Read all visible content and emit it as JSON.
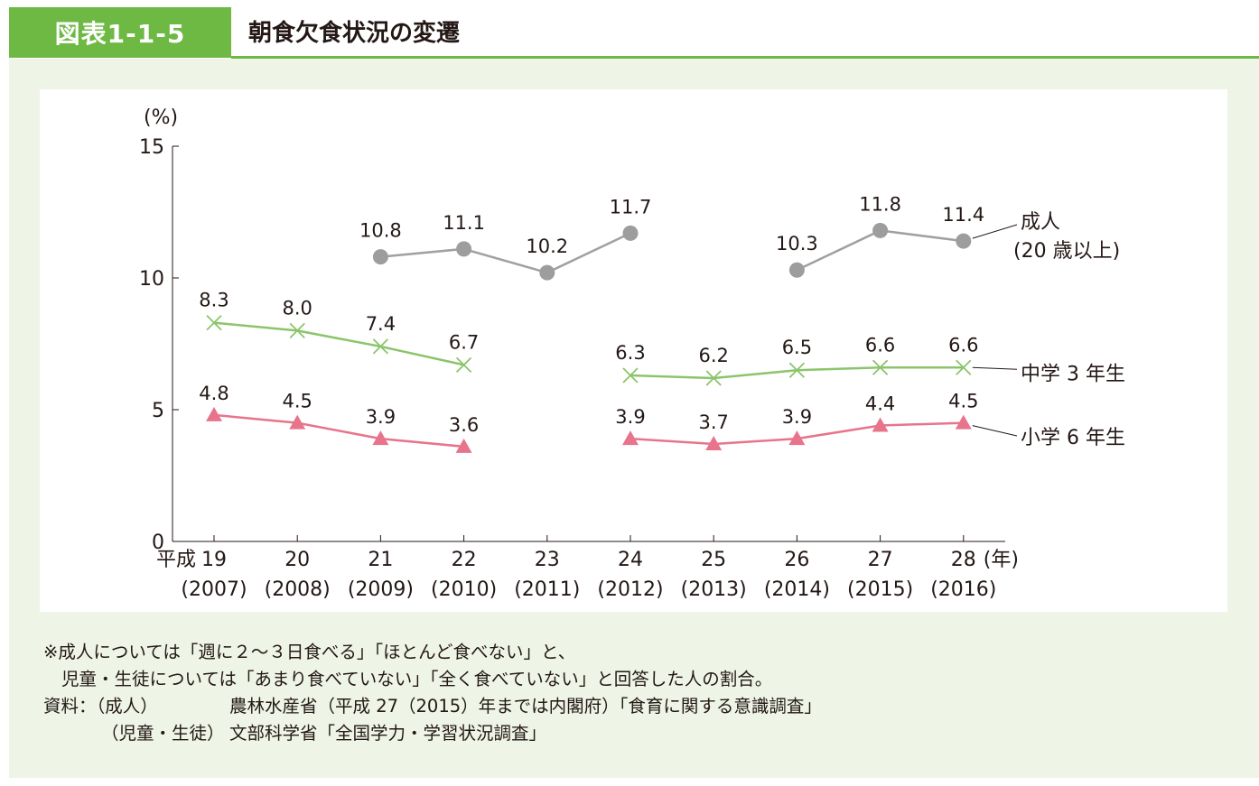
{
  "figure": {
    "number": "図表1-1-5",
    "title": "朝食欠食状況の変遷",
    "colors": {
      "accent": "#6db944",
      "panel": "#eef4e6"
    }
  },
  "chart_data": {
    "type": "line",
    "title": "朝食欠食状況の変遷",
    "ylabel": "(%)",
    "xlabel": "(年)",
    "ylim": [
      0,
      15
    ],
    "yticks": [
      0,
      5,
      10,
      15
    ],
    "x_era_prefix": "平成",
    "categories": [
      "19",
      "20",
      "21",
      "22",
      "23",
      "24",
      "25",
      "26",
      "27",
      "28"
    ],
    "categories_western": [
      "(2007)",
      "(2008)",
      "(2009)",
      "(2010)",
      "(2011)",
      "(2012)",
      "(2013)",
      "(2014)",
      "(2015)",
      "(2016)"
    ],
    "series": [
      {
        "name": "成人",
        "name_sub": "(20 歳以上)",
        "marker": "circle",
        "color": "#a0a0a0",
        "marker_color": "#9d9d9d",
        "values": [
          null,
          null,
          10.8,
          11.1,
          10.2,
          11.7,
          null,
          10.3,
          11.8,
          11.4
        ],
        "labels": [
          "",
          "",
          "10.8",
          "11.1",
          "10.2",
          "11.7",
          "",
          "10.3",
          "11.8",
          "11.4"
        ],
        "segments": [
          [
            2,
            5
          ],
          [
            7,
            9
          ]
        ]
      },
      {
        "name": "中学 3 年生",
        "marker": "cross",
        "color": "#8cc46c",
        "marker_color": "#8cc46c",
        "values": [
          8.3,
          8.0,
          7.4,
          6.7,
          null,
          6.3,
          6.2,
          6.5,
          6.6,
          6.6
        ],
        "labels": [
          "8.3",
          "8.0",
          "7.4",
          "6.7",
          "",
          "6.3",
          "6.2",
          "6.5",
          "6.6",
          "6.6"
        ],
        "segments": [
          [
            0,
            3
          ],
          [
            5,
            9
          ]
        ]
      },
      {
        "name": "小学 6 年生",
        "marker": "triangle",
        "color": "#e8748c",
        "marker_color": "#e8748c",
        "values": [
          4.8,
          4.5,
          3.9,
          3.6,
          null,
          3.9,
          3.7,
          3.9,
          4.4,
          4.5
        ],
        "labels": [
          "4.8",
          "4.5",
          "3.9",
          "3.6",
          "",
          "3.9",
          "3.7",
          "3.9",
          "4.4",
          "4.5"
        ],
        "segments": [
          [
            0,
            3
          ],
          [
            5,
            9
          ]
        ]
      }
    ]
  },
  "notes": {
    "line1": "※成人については「週に２〜３日食べる」「ほとんど食べない」と、",
    "line2": "児童・生徒については「あまり食べていない」「全く食べていない」と回答した人の割合。",
    "source_label": "資料：（成人）",
    "source1": "農林水産省（平成 27（2015）年までは内閣府）「食育に関する意識調査」",
    "source_sub": "（児童・生徒）",
    "source2": "文部科学省「全国学力・学習状況調査」"
  }
}
